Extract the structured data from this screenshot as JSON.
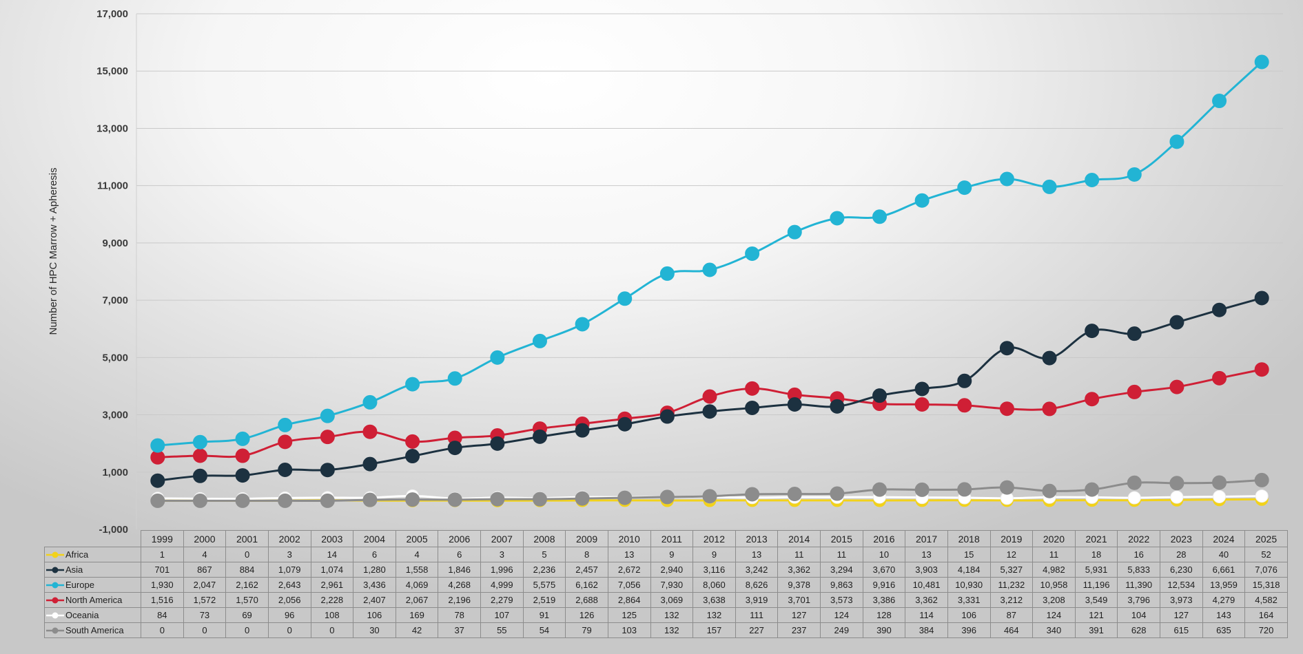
{
  "chart_data": {
    "type": "line",
    "ylabel": "Number of HPC Marrow + Apheresis",
    "xlabel": "",
    "ylim": [
      -1000,
      17000
    ],
    "yticks": [
      -1000,
      1000,
      3000,
      5000,
      7000,
      9000,
      11000,
      13000,
      15000,
      17000
    ],
    "ytick_labels": [
      "-1,000",
      "1,000",
      "3,000",
      "5,000",
      "7,000",
      "9,000",
      "11,000",
      "13,000",
      "15,000",
      "17,000"
    ],
    "grid": "horizontal",
    "legend": "in data table",
    "categories": [
      "1999",
      "2000",
      "2001",
      "2002",
      "2003",
      "2004",
      "2005",
      "2006",
      "2007",
      "2008",
      "2009",
      "2010",
      "2011",
      "2012",
      "2013",
      "2014",
      "2015",
      "2016",
      "2017",
      "2018",
      "2019",
      "2020",
      "2021",
      "2022",
      "2023",
      "2024",
      "2025"
    ],
    "series": [
      {
        "name": "Africa",
        "color": "#f2d21b",
        "values": [
          1,
          4,
          0,
          3,
          14,
          6,
          4,
          6,
          3,
          5,
          8,
          13,
          9,
          9,
          13,
          11,
          11,
          10,
          13,
          15,
          12,
          11,
          18,
          16,
          28,
          40,
          52
        ]
      },
      {
        "name": "Asia",
        "color": "#1c3140",
        "values": [
          701,
          867,
          884,
          1079,
          1074,
          1280,
          1558,
          1846,
          1996,
          2236,
          2457,
          2672,
          2940,
          3116,
          3242,
          3362,
          3294,
          3670,
          3903,
          4184,
          5327,
          4982,
          5931,
          5833,
          6230,
          6661,
          7076
        ]
      },
      {
        "name": "Europe",
        "color": "#22b4d4",
        "values": [
          1930,
          2047,
          2162,
          2643,
          2961,
          3436,
          4069,
          4268,
          4999,
          5575,
          6162,
          7056,
          7930,
          8060,
          8626,
          9378,
          9863,
          9916,
          10481,
          10930,
          11232,
          10958,
          11196,
          11390,
          12534,
          13959,
          15318
        ]
      },
      {
        "name": "North America",
        "color": "#cf1f35",
        "values": [
          1516,
          1572,
          1570,
          2056,
          2228,
          2407,
          2067,
          2196,
          2279,
          2519,
          2688,
          2864,
          3069,
          3638,
          3919,
          3701,
          3573,
          3386,
          3362,
          3331,
          3212,
          3208,
          3549,
          3796,
          3973,
          4279,
          4582
        ]
      },
      {
        "name": "Oceania",
        "color": "#ffffff",
        "values": [
          84,
          73,
          69,
          96,
          108,
          106,
          169,
          78,
          107,
          91,
          126,
          125,
          132,
          132,
          111,
          127,
          124,
          128,
          114,
          106,
          87,
          124,
          121,
          104,
          127,
          143,
          164
        ]
      },
      {
        "name": "South America",
        "color": "#8c8c8c",
        "values": [
          0,
          0,
          0,
          0,
          0,
          30,
          42,
          37,
          55,
          54,
          79,
          103,
          132,
          157,
          227,
          237,
          249,
          390,
          384,
          396,
          464,
          340,
          391,
          628,
          615,
          635,
          720
        ]
      }
    ],
    "table_values": [
      [
        "1",
        "4",
        "0",
        "3",
        "14",
        "6",
        "4",
        "6",
        "3",
        "5",
        "8",
        "13",
        "9",
        "9",
        "13",
        "11",
        "11",
        "10",
        "13",
        "15",
        "12",
        "11",
        "18",
        "16",
        "28",
        "40",
        "52"
      ],
      [
        "701",
        "867",
        "884",
        "1,079",
        "1,074",
        "1,280",
        "1,558",
        "1,846",
        "1,996",
        "2,236",
        "2,457",
        "2,672",
        "2,940",
        "3,116",
        "3,242",
        "3,362",
        "3,294",
        "3,670",
        "3,903",
        "4,184",
        "5,327",
        "4,982",
        "5,931",
        "5,833",
        "6,230",
        "6,661",
        "7,076"
      ],
      [
        "1,930",
        "2,047",
        "2,162",
        "2,643",
        "2,961",
        "3,436",
        "4,069",
        "4,268",
        "4,999",
        "5,575",
        "6,162",
        "7,056",
        "7,930",
        "8,060",
        "8,626",
        "9,378",
        "9,863",
        "9,916",
        "10,481",
        "10,930",
        "11,232",
        "10,958",
        "11,196",
        "11,390",
        "12,534",
        "13,959",
        "15,318"
      ],
      [
        "1,516",
        "1,572",
        "1,570",
        "2,056",
        "2,228",
        "2,407",
        "2,067",
        "2,196",
        "2,279",
        "2,519",
        "2,688",
        "2,864",
        "3,069",
        "3,638",
        "3,919",
        "3,701",
        "3,573",
        "3,386",
        "3,362",
        "3,331",
        "3,212",
        "3,208",
        "3,549",
        "3,796",
        "3,973",
        "4,279",
        "4,582"
      ],
      [
        "84",
        "73",
        "69",
        "96",
        "108",
        "106",
        "169",
        "78",
        "107",
        "91",
        "126",
        "125",
        "132",
        "132",
        "111",
        "127",
        "124",
        "128",
        "114",
        "106",
        "87",
        "124",
        "121",
        "104",
        "127",
        "143",
        "164"
      ],
      [
        "0",
        "0",
        "0",
        "0",
        "0",
        "30",
        "42",
        "37",
        "55",
        "54",
        "79",
        "103",
        "132",
        "157",
        "227",
        "237",
        "249",
        "390",
        "384",
        "396",
        "464",
        "340",
        "391",
        "628",
        "615",
        "635",
        "720"
      ]
    ]
  }
}
